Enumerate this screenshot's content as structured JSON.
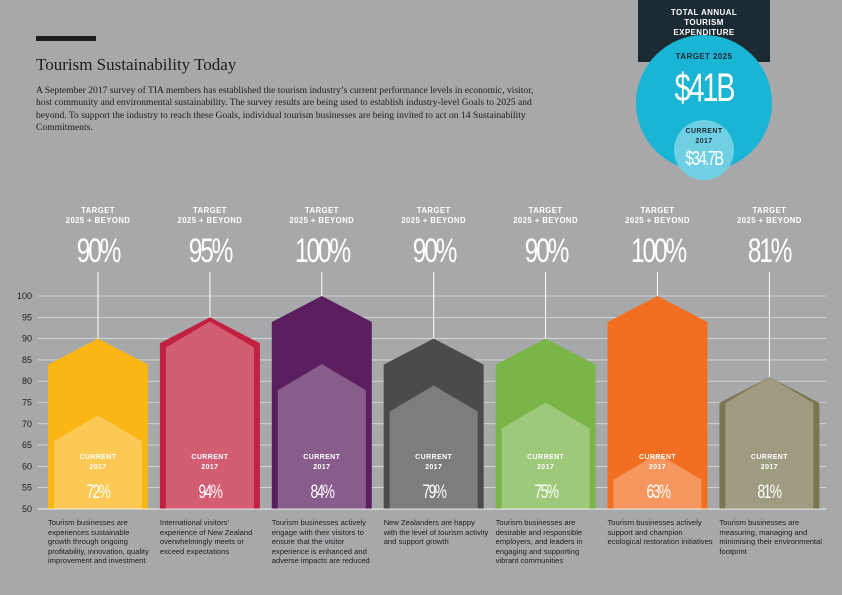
{
  "chart_data": {
    "type": "house-bar",
    "title": "Tourism Sustainability Today",
    "subtitle": "A September 2017 survey of TIA members has established the tourism industry’s current performance levels in economic, visitor, host community and environmental sustainability. The survey results are being used to establish industry-level Goals to 2025 and beyond. To support the industry to reach these Goals, individual tourism businesses are being invited to act on 14 Sustainability Commitments.",
    "categories": [
      "Tourism businesses are experiences sustainable growth through ongoing profitability, innovation, quality improvement and investment",
      "International visitors’ experience of New Zealand overwhelmingly meets or exceed expectations",
      "Tourism businesses actively engage with their visitors to ensure that the visitor experience is enhanced and adverse impacts are reduced",
      "New Zealanders are happy with the level of tourism activity and support growth",
      "Tourism businesses are desirable and responsible employers, and leaders in engaging and supporting vibrant communities",
      "Tourism businesses actively support and champion ecological restoration initiatives",
      "Tourism businesses are measuring, managing and minimising their environmental footprint"
    ],
    "colors": [
      "#fbb514",
      "#c2203f",
      "#5b1f60",
      "#4b4b4d",
      "#7ab547",
      "#f26f21",
      "#7b7550"
    ],
    "series": [
      {
        "name": "TARGET\n2025 + BEYOND",
        "values": [
          90,
          95,
          100,
          90,
          90,
          100,
          81
        ],
        "value_labels": [
          "90%",
          "95%",
          "100%",
          "90%",
          "90%",
          "100%",
          "81%"
        ]
      },
      {
        "name": "CURRENT\n2017",
        "color": "#ffffff",
        "values": [
          72,
          94,
          84,
          79,
          75,
          63,
          81
        ],
        "value_labels": [
          "72%",
          "94%",
          "84%",
          "79%",
          "75%",
          "63%",
          "81%"
        ]
      }
    ],
    "ylim": [
      50,
      100
    ],
    "yticks": [
      50,
      55,
      60,
      65,
      70,
      75,
      80,
      85,
      90,
      95,
      100
    ],
    "grid": true
  },
  "expenditure": {
    "title": "TOTAL ANNUAL\nTOURISM EXPENDITURE",
    "target_label": "TARGET 2025",
    "target_value": "$41B",
    "current_label": "CURRENT\n2017",
    "current_value": "$34.7B"
  }
}
